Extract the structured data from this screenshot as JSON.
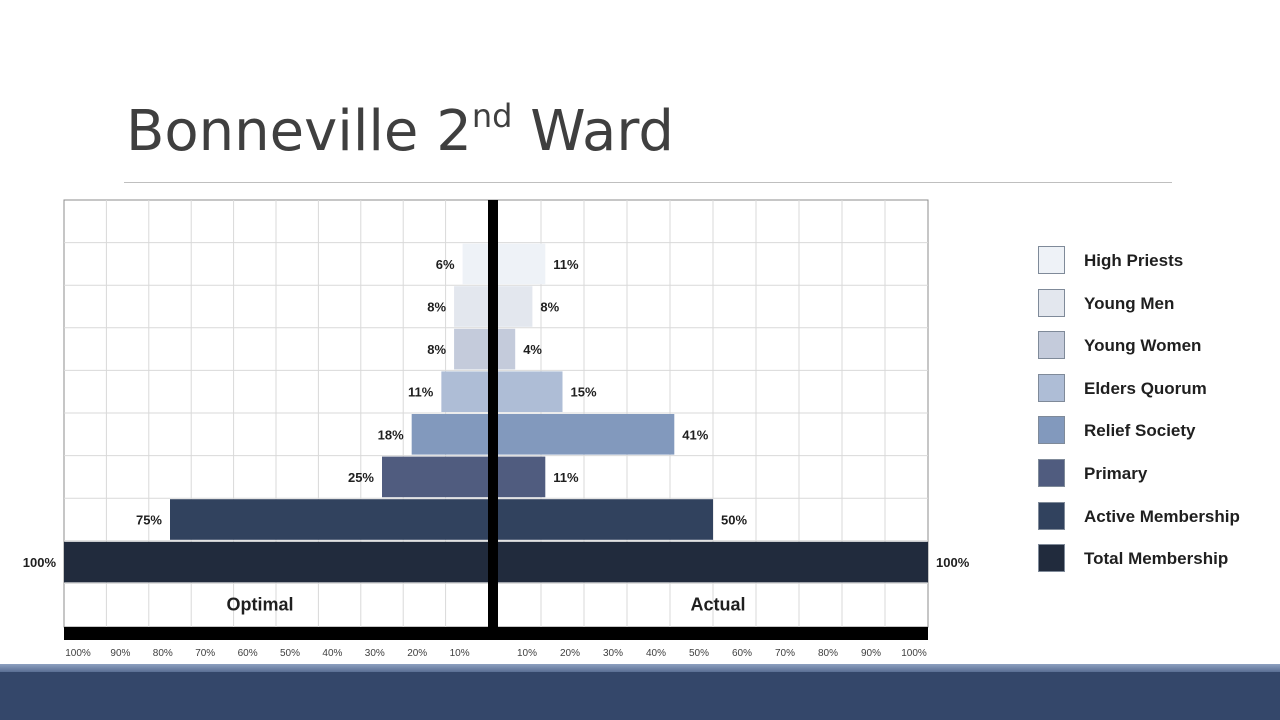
{
  "slide": {
    "title_main": "Bonneville 2",
    "title_sup": "nd",
    "title_end": " Ward"
  },
  "chart_data": {
    "type": "bar",
    "orientation": "horizontal",
    "layout": "back-to-back",
    "categories": [
      "High Priests",
      "Young Men",
      "Young Women",
      "Elders Quorum",
      "Relief Society",
      "Primary",
      "Active Membership",
      "Total Membership"
    ],
    "series": [
      {
        "name": "Optimal",
        "values": [
          6,
          8,
          8,
          11,
          18,
          25,
          75,
          100
        ],
        "labels": [
          "6%",
          "8%",
          "8%",
          "11%",
          "18%",
          "25%",
          "75%",
          "100%"
        ]
      },
      {
        "name": "Actual",
        "values": [
          11,
          8,
          4,
          15,
          41,
          11,
          50,
          100
        ],
        "labels": [
          "11%",
          "8%",
          "4%",
          "15%",
          "41%",
          "11%",
          "50%",
          "100%"
        ]
      }
    ],
    "colors": [
      "#eef2f7",
      "#e3e7ee",
      "#c4cbdb",
      "#aebdd6",
      "#8299bd",
      "#505c7f",
      "#31425e",
      "#212b3d"
    ],
    "xlim": [
      0,
      100
    ],
    "x_ticks": [
      "100%",
      "90%",
      "80%",
      "70%",
      "60%",
      "50%",
      "40%",
      "30%",
      "20%",
      "10%"
    ],
    "x_ticks_right": [
      "10%",
      "20%",
      "30%",
      "40%",
      "50%",
      "60%",
      "70%",
      "80%",
      "90%",
      "100%"
    ],
    "grid": true,
    "legend_position": "right"
  },
  "legend": {
    "items": [
      {
        "label": "High Priests",
        "color": "#eef2f7"
      },
      {
        "label": "Young Men",
        "color": "#e3e7ee"
      },
      {
        "label": "Young Women",
        "color": "#c4cbdb"
      },
      {
        "label": "Elders Quorum",
        "color": "#aebdd6"
      },
      {
        "label": "Relief Society",
        "color": "#8299bd"
      },
      {
        "label": "Primary",
        "color": "#505c7f"
      },
      {
        "label": "Active Membership",
        "color": "#31425e"
      },
      {
        "label": "Total Membership",
        "color": "#212b3d"
      }
    ]
  }
}
